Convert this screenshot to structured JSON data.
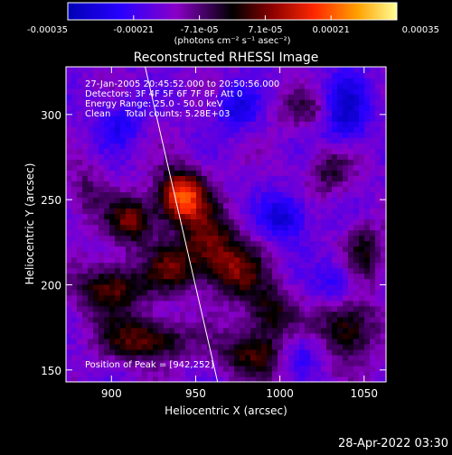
{
  "chart_data": {
    "type": "heatmap",
    "title": "Reconstructed RHESSI Image",
    "xlabel": "Heliocentric X (arcsec)",
    "ylabel": "Heliocentric Y (arcsec)",
    "xlim": [
      873,
      1063
    ],
    "ylim": [
      143,
      328
    ],
    "xticks": [
      900,
      950,
      1000,
      1050
    ],
    "yticks": [
      150,
      200,
      250,
      300
    ],
    "colorbar": {
      "ticks": [
        "-0.00035",
        "-0.00021",
        "-7.1e-05",
        "7.1e-05",
        "0.00021",
        "0.00035"
      ],
      "label": "(photons cm⁻² s⁻¹ asec⁻²)",
      "range": [
        -0.00035,
        0.00035
      ]
    },
    "annotations": [
      "27-Jan-2005 20:45:52.000 to 20:50:56.000",
      "Detectors: 3F 4F 5F 6F 7F 8F, Att 0",
      "Energy Range: 25.0 - 50.0 keV",
      "Clean     Total counts: 5.28E+03"
    ],
    "peak_label": "Position of Peak = [942,252]",
    "peak": [
      942,
      252
    ],
    "grid": false,
    "limb_line": [
      [
        920,
        330
      ],
      [
        963,
        143
      ]
    ],
    "sources": [
      {
        "x": 942,
        "y": 252,
        "sx": 10,
        "sy": 11,
        "amp": 1.0
      },
      {
        "x": 958,
        "y": 224,
        "sx": 12,
        "sy": 14,
        "amp": 0.55
      },
      {
        "x": 912,
        "y": 238,
        "sx": 10,
        "sy": 10,
        "amp": 0.6
      },
      {
        "x": 900,
        "y": 198,
        "sx": 14,
        "sy": 11,
        "amp": 0.6
      },
      {
        "x": 935,
        "y": 210,
        "sx": 10,
        "sy": 10,
        "amp": 0.5
      },
      {
        "x": 975,
        "y": 208,
        "sx": 12,
        "sy": 12,
        "amp": 0.5
      },
      {
        "x": 995,
        "y": 185,
        "sx": 10,
        "sy": 10,
        "amp": 0.45
      },
      {
        "x": 920,
        "y": 168,
        "sx": 18,
        "sy": 9,
        "amp": 0.6
      },
      {
        "x": 985,
        "y": 160,
        "sx": 14,
        "sy": 10,
        "amp": 0.55
      },
      {
        "x": 1040,
        "y": 175,
        "sx": 12,
        "sy": 14,
        "amp": 0.55
      },
      {
        "x": 1050,
        "y": 220,
        "sx": 8,
        "sy": 12,
        "amp": 0.4
      },
      {
        "x": 1030,
        "y": 268,
        "sx": 10,
        "sy": 10,
        "amp": 0.35
      },
      {
        "x": 1018,
        "y": 303,
        "sx": 14,
        "sy": 8,
        "amp": 0.3
      },
      {
        "x": 885,
        "y": 255,
        "sx": 8,
        "sy": 12,
        "amp": 0.25
      },
      {
        "x": 1003,
        "y": 240,
        "sx": 10,
        "sy": 10,
        "amp": -0.45
      },
      {
        "x": 1038,
        "y": 302,
        "sx": 10,
        "sy": 14,
        "amp": -0.55
      },
      {
        "x": 975,
        "y": 304,
        "sx": 9,
        "sy": 9,
        "amp": -0.4
      },
      {
        "x": 905,
        "y": 295,
        "sx": 10,
        "sy": 10,
        "amp": -0.3
      },
      {
        "x": 1035,
        "y": 200,
        "sx": 9,
        "sy": 9,
        "amp": -0.35
      },
      {
        "x": 1012,
        "y": 160,
        "sx": 10,
        "sy": 8,
        "amp": -0.3
      }
    ]
  },
  "timestamp": "28-Apr-2022 03:30"
}
